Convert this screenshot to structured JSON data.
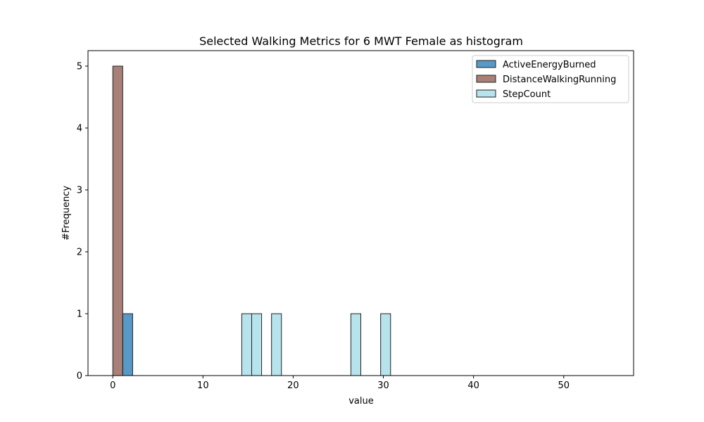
{
  "chart_data": {
    "type": "histogram",
    "title": "Selected Walking Metrics for 6 MWT Female as histogram",
    "xlabel": "value",
    "ylabel": "#Frequency",
    "xlim": [
      -2.75,
      57.75
    ],
    "ylim": [
      0,
      5.25
    ],
    "xticks": [
      0,
      10,
      20,
      30,
      40,
      50
    ],
    "yticks": [
      0,
      1,
      2,
      3,
      4,
      5
    ],
    "bin_width": 1.1,
    "legend_position": "top-right",
    "series": [
      {
        "name": "ActiveEnergyBurned",
        "color": "#1f77b4",
        "bins": [
          {
            "start": 1.1,
            "count": 1
          }
        ]
      },
      {
        "name": "DistanceWalkingRunning",
        "color": "#8c564b",
        "bins": [
          {
            "start": 0.0,
            "count": 5
          }
        ]
      },
      {
        "name": "StepCount",
        "color": "#9edae5",
        "bins": [
          {
            "start": 14.3,
            "count": 1
          },
          {
            "start": 15.4,
            "count": 1
          },
          {
            "start": 17.6,
            "count": 1
          },
          {
            "start": 26.4,
            "count": 1
          },
          {
            "start": 29.7,
            "count": 1
          }
        ]
      }
    ],
    "zero_baseline_range": [
      0,
      55
    ]
  }
}
